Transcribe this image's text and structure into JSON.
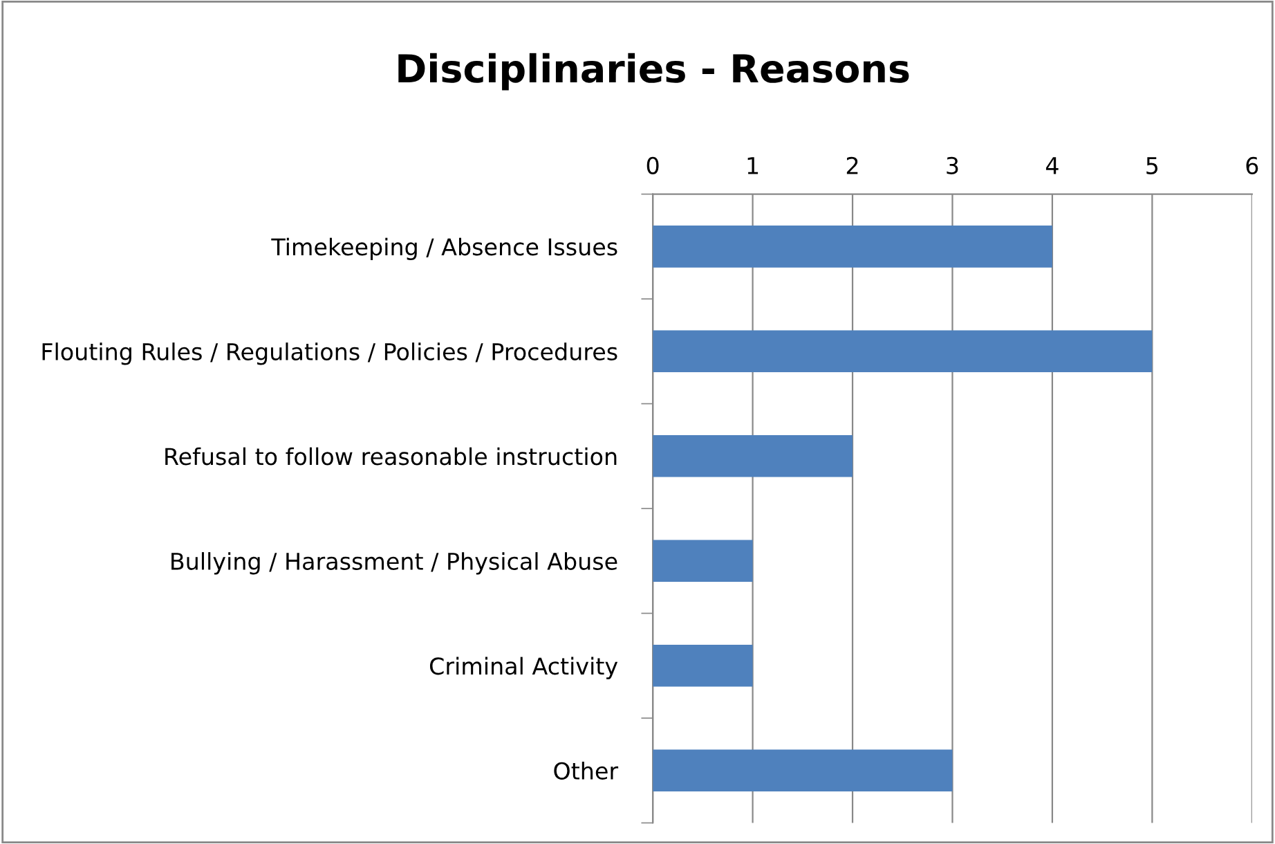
{
  "chart_data": {
    "type": "bar",
    "orientation": "horizontal",
    "title": "Disciplinaries - Reasons",
    "categories": [
      "Timekeeping / Absence Issues",
      "Flouting Rules / Regulations / Policies / Procedures",
      "Refusal to follow reasonable instruction",
      "Bullying / Harassment / Physical Abuse",
      "Criminal Activity",
      "Other"
    ],
    "values": [
      4,
      5,
      2,
      1,
      1,
      3
    ],
    "color": "#4f81bd",
    "xlim": [
      0,
      6
    ],
    "xticks": [
      0,
      1,
      2,
      3,
      4,
      5,
      6
    ],
    "grid": "x",
    "legend": false
  }
}
